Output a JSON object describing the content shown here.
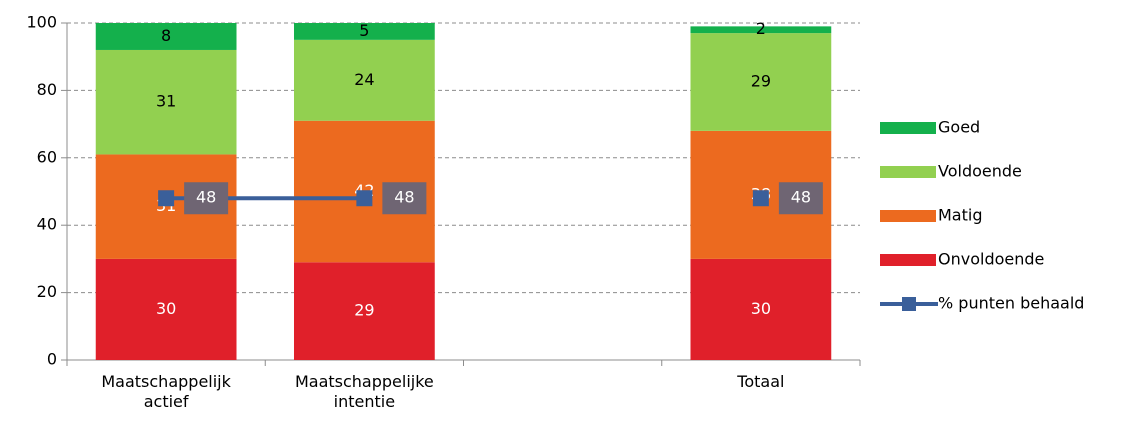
{
  "chart_data": {
    "type": "bar",
    "stacked": true,
    "categories": [
      "Maatschappelijk actief",
      "Maatschappelijke intentie",
      null,
      "Totaal"
    ],
    "series": [
      {
        "name": "Onvoldoende",
        "type": "bar",
        "color": "#e0202a",
        "label_color": "#ffffff",
        "values": [
          30,
          29,
          null,
          30
        ]
      },
      {
        "name": "Matig",
        "type": "bar",
        "color": "#ec6a1f",
        "label_color": "#ffffff",
        "values": [
          31,
          42,
          null,
          38
        ]
      },
      {
        "name": "Voldoende",
        "type": "bar",
        "color": "#92d050",
        "label_color": "#000000",
        "values": [
          31,
          24,
          null,
          29
        ]
      },
      {
        "name": "Goed",
        "type": "bar",
        "color": "#14b04c",
        "label_color": "#000000",
        "values": [
          8,
          5,
          null,
          2
        ]
      },
      {
        "name": "% punten behaald",
        "type": "line",
        "color": "#3a5f9a",
        "label_color": "#ffffff",
        "values": [
          48,
          48,
          null,
          48
        ]
      }
    ],
    "legend_order": [
      3,
      2,
      1,
      0,
      4
    ],
    "legend": "right",
    "ylim": [
      0,
      100
    ],
    "yticks": [
      0,
      20,
      40,
      60,
      80,
      100
    ],
    "grid": true
  }
}
